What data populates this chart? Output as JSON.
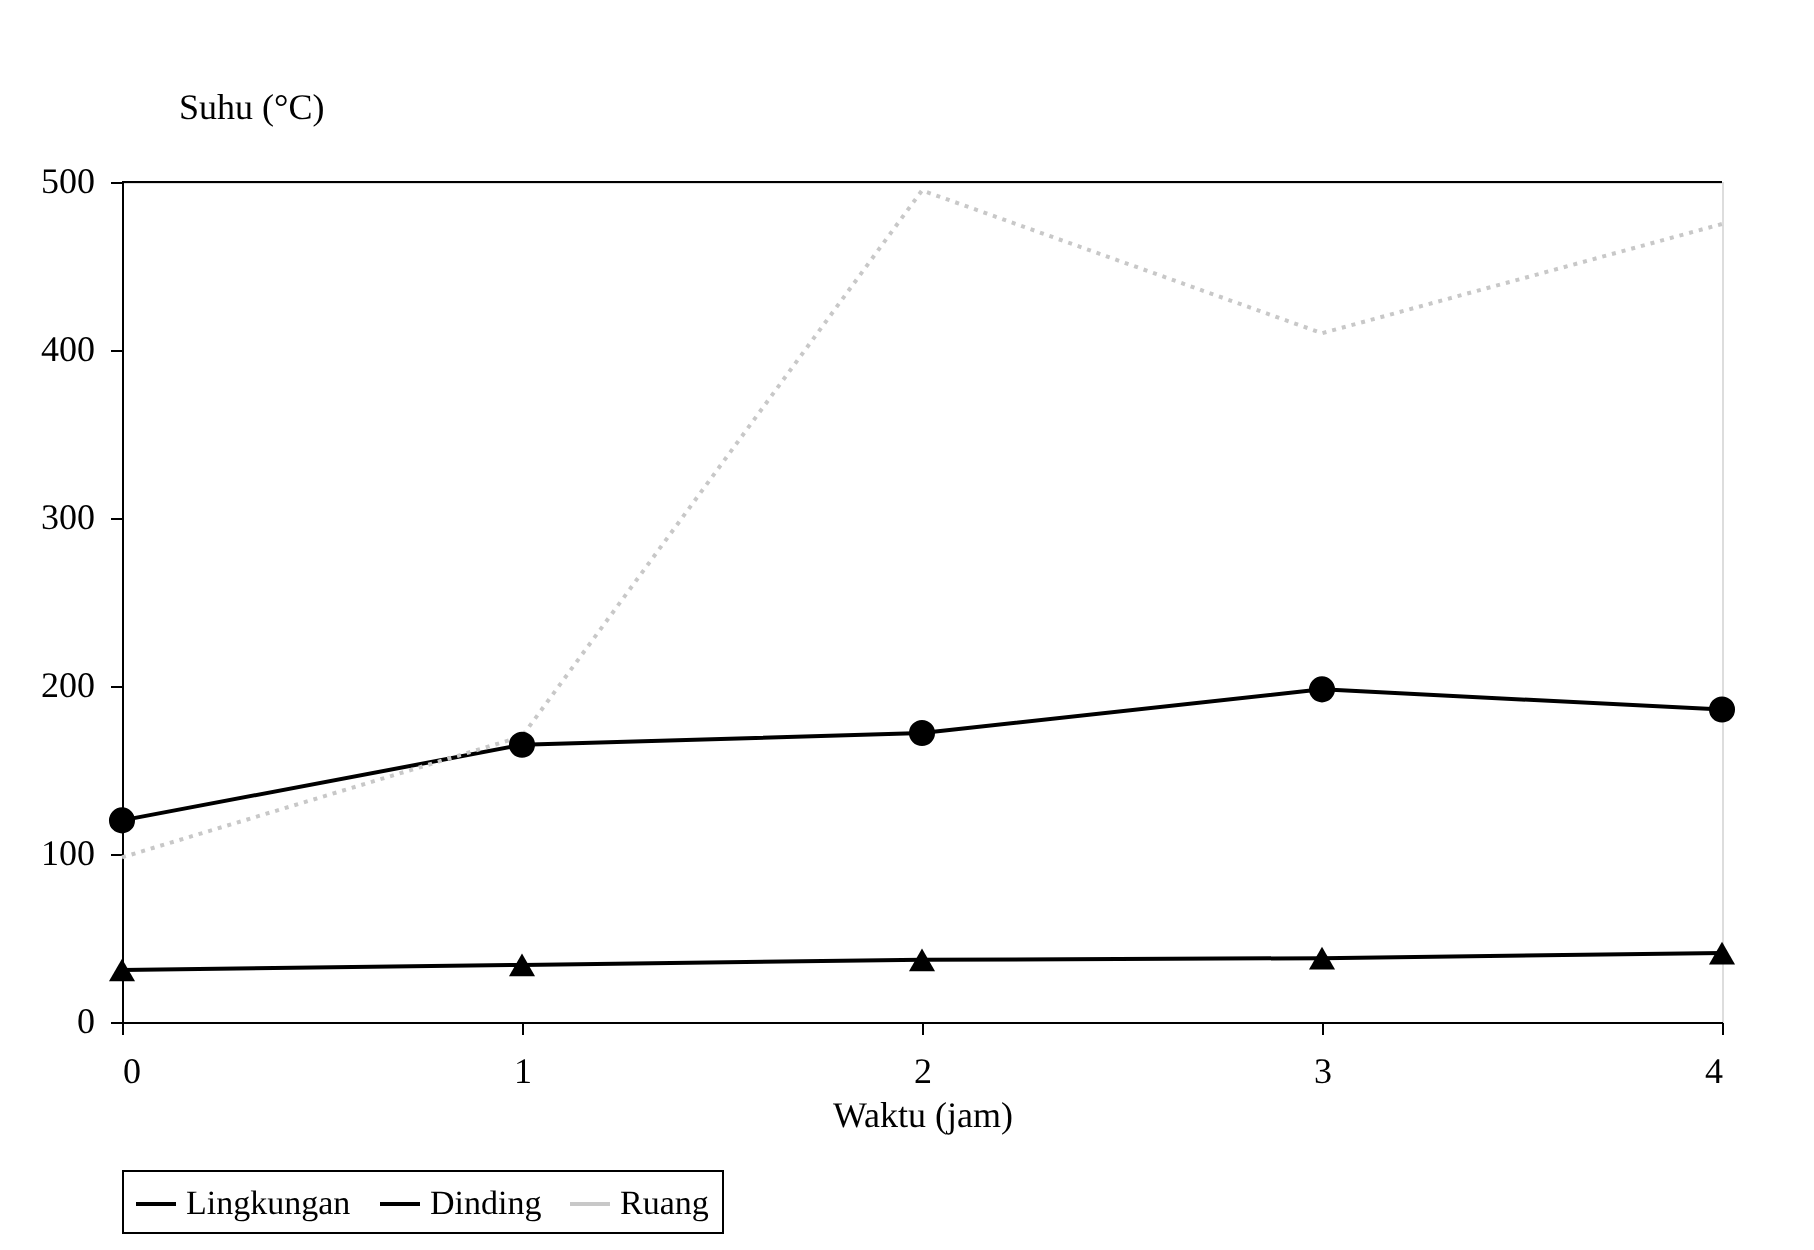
{
  "chart_data": {
    "type": "line",
    "xlabel": "Waktu (jam)",
    "ylabel": "Suhu (°C)",
    "x": [
      0,
      1,
      2,
      3,
      4
    ],
    "xlim": [
      0,
      4
    ],
    "xticks": [
      0,
      1,
      2,
      3,
      4
    ],
    "ylim": [
      0,
      500
    ],
    "yticks": [
      0,
      100,
      200,
      300,
      400,
      500
    ],
    "grid": false,
    "legend": "bottom",
    "series": [
      {
        "name": "Lingkungan",
        "color": "#000000",
        "marker": "triangle",
        "line_style": "solid",
        "values": [
          31,
          34,
          37,
          38,
          41
        ]
      },
      {
        "name": "Dinding",
        "color": "#000000",
        "marker": "circle",
        "line_style": "solid",
        "values": [
          120,
          165,
          172,
          198,
          186
        ]
      },
      {
        "name": "Ruang",
        "color": "#c8c8c8",
        "marker": "none",
        "line_style": "dotted",
        "values": [
          98,
          170,
          495,
          410,
          475
        ]
      }
    ]
  }
}
